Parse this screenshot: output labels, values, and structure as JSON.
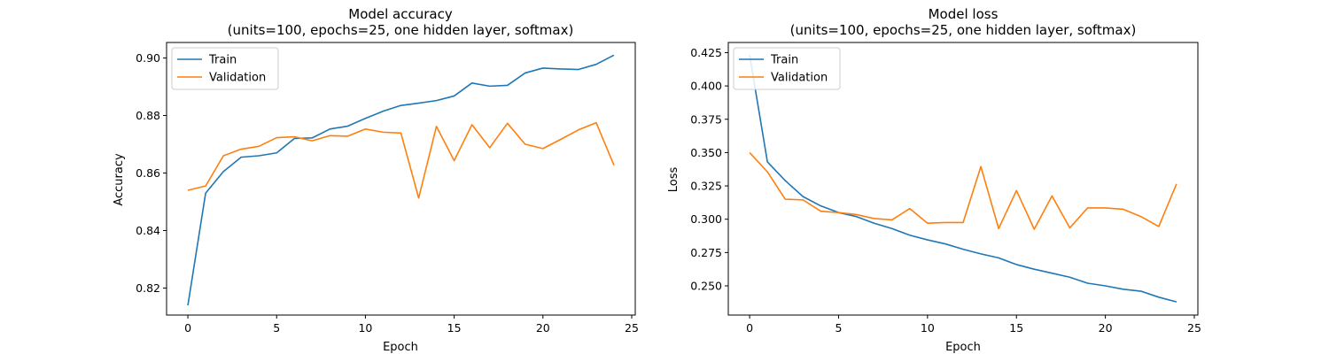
{
  "colors": {
    "train": "#1f77b4",
    "validation": "#ff7f0e"
  },
  "chart_data": [
    {
      "type": "line",
      "title": "Model accuracy",
      "subtitle": "(units=100, epochs=25, one hidden layer, softmax)",
      "xlabel": "Epoch",
      "ylabel": "Accuracy",
      "xlim": [
        -1.2,
        25.2
      ],
      "ylim": [
        0.8106,
        0.9054
      ],
      "xticks": [
        0,
        5,
        10,
        15,
        20,
        25
      ],
      "yticks": [
        0.82,
        0.84,
        0.86,
        0.88,
        0.9
      ],
      "ytick_labels": [
        "0.82",
        "0.84",
        "0.86",
        "0.88",
        "0.90"
      ],
      "legend_position": "upper-left",
      "grid": false,
      "x": [
        0,
        1,
        2,
        3,
        4,
        5,
        6,
        7,
        8,
        9,
        10,
        11,
        12,
        13,
        14,
        15,
        16,
        17,
        18,
        19,
        20,
        21,
        22,
        23,
        24
      ],
      "series": [
        {
          "name": "Train",
          "color_key": "train",
          "values": [
            0.814,
            0.853,
            0.8605,
            0.8655,
            0.866,
            0.867,
            0.872,
            0.8722,
            0.8753,
            0.8763,
            0.879,
            0.8815,
            0.8835,
            0.8843,
            0.8852,
            0.8868,
            0.8913,
            0.8902,
            0.8905,
            0.8948,
            0.8965,
            0.8962,
            0.896,
            0.8978,
            0.901
          ]
        },
        {
          "name": "Validation",
          "color_key": "validation",
          "values": [
            0.854,
            0.8555,
            0.866,
            0.8683,
            0.8693,
            0.8723,
            0.8726,
            0.8712,
            0.873,
            0.8728,
            0.8753,
            0.8742,
            0.8739,
            0.8513,
            0.8762,
            0.8643,
            0.8768,
            0.8688,
            0.8773,
            0.87,
            0.8685,
            0.8717,
            0.875,
            0.8775,
            0.8627
          ]
        }
      ]
    },
    {
      "type": "line",
      "title": "Model loss",
      "subtitle": "(units=100, epochs=25, one hidden layer, softmax)",
      "xlabel": "Epoch",
      "ylabel": "Loss",
      "xlim": [
        -1.2,
        25.2
      ],
      "ylim": [
        0.2281,
        0.4326
      ],
      "xticks": [
        0,
        5,
        10,
        15,
        20,
        25
      ],
      "yticks": [
        0.25,
        0.275,
        0.3,
        0.325,
        0.35,
        0.375,
        0.4,
        0.425
      ],
      "ytick_labels": [
        "0.250",
        "0.275",
        "0.300",
        "0.325",
        "0.350",
        "0.375",
        "0.400",
        "0.425"
      ],
      "legend_position": "upper-left",
      "grid": false,
      "x": [
        0,
        1,
        2,
        3,
        4,
        5,
        6,
        7,
        8,
        9,
        10,
        11,
        12,
        13,
        14,
        15,
        16,
        17,
        18,
        19,
        20,
        21,
        22,
        23,
        24
      ],
      "series": [
        {
          "name": "Train",
          "color_key": "train",
          "values": [
            0.423,
            0.343,
            0.329,
            0.317,
            0.31,
            0.305,
            0.302,
            0.297,
            0.293,
            0.288,
            0.2845,
            0.2815,
            0.2775,
            0.274,
            0.271,
            0.266,
            0.2625,
            0.2595,
            0.2565,
            0.252,
            0.25,
            0.2475,
            0.246,
            0.2415,
            0.238
          ]
        },
        {
          "name": "Validation",
          "color_key": "validation",
          "values": [
            0.35,
            0.3355,
            0.315,
            0.3145,
            0.306,
            0.305,
            0.3035,
            0.3005,
            0.2995,
            0.308,
            0.297,
            0.2975,
            0.2975,
            0.3395,
            0.293,
            0.3215,
            0.2925,
            0.3175,
            0.2935,
            0.3085,
            0.3085,
            0.3075,
            0.302,
            0.2945,
            0.3265
          ]
        }
      ]
    }
  ]
}
